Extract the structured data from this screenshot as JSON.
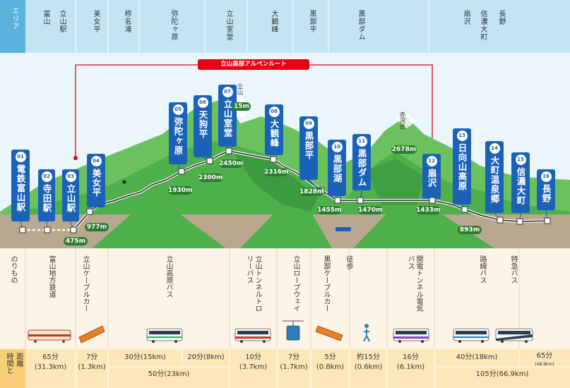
{
  "header_row": {
    "label": "エリア",
    "areas": [
      "富山",
      "立山駅",
      "美女平",
      "称名滝",
      "弥陀ヶ原",
      "立山室堂",
      "大観峰",
      "黒部平",
      "黒部ダム",
      "扇沢",
      "信濃大町",
      "長野"
    ]
  },
  "route_banner": "立山黒部アルペンルート",
  "peaks": {
    "tateyama": "立山",
    "akazawadake": "赤沢岳",
    "akazawadake_elev": "2678m"
  },
  "stations": [
    {
      "num": "01",
      "name": "電鉄富山駅",
      "elev": ""
    },
    {
      "num": "02",
      "name": "寺田駅",
      "elev": ""
    },
    {
      "num": "03",
      "name": "立山駅",
      "elev": "475m"
    },
    {
      "num": "04",
      "name": "美女平",
      "elev": "977m"
    },
    {
      "num": "05",
      "name": "弥陀ヶ原",
      "elev": "1930m"
    },
    {
      "num": "06",
      "name": "天狗平",
      "elev": "2300m"
    },
    {
      "num": "07",
      "name": "立山室堂",
      "elev": "2450m"
    },
    {
      "num": "08",
      "name": "大観峰",
      "elev": "2316m"
    },
    {
      "num": "09",
      "name": "黒部平",
      "elev": "1828m"
    },
    {
      "num": "10",
      "name": "黒部湖",
      "elev": "1455m"
    },
    {
      "num": "11",
      "name": "黒部ダム",
      "elev": "1470m"
    },
    {
      "num": "12",
      "name": "扇沢",
      "elev": "1433m"
    },
    {
      "num": "13",
      "name": "日向山高原",
      "elev": "893m"
    },
    {
      "num": "14",
      "name": "大町温泉郷",
      "elev": ""
    },
    {
      "num": "15",
      "name": "信濃大町",
      "elev": ""
    },
    {
      "num": "16",
      "name": "長野",
      "elev": ""
    }
  ],
  "tateyama_elev_partial": "15m",
  "transport": {
    "label": "のりもの",
    "modes": [
      "富山地方鉄道",
      "立山ケーブルカー",
      "立山高原バス",
      "立山トンネルトロリーバス",
      "立山ロープウェイ",
      "黒部ケーブルカー",
      "徒歩",
      "関電トンネル電気バス",
      "路線バス",
      "特急バス"
    ]
  },
  "time_row": {
    "label_a": "距離",
    "label_b": "時間と",
    "segments": [
      {
        "time": "65分",
        "dist": "(31.3km)"
      },
      {
        "time": "7分",
        "dist": "(1.3km)"
      },
      {
        "time": "30分(15km)",
        "dist": ""
      },
      {
        "time": "20分(8km)",
        "dist": ""
      },
      {
        "time": "50分(23km)",
        "dist": ""
      },
      {
        "time": "10分",
        "dist": "(3.7km)"
      },
      {
        "time": "7分",
        "dist": "(1.7km)"
      },
      {
        "time": "5分",
        "dist": "(0.8km)"
      },
      {
        "time": "約15分",
        "dist": "(0.6km)"
      },
      {
        "time": "16分",
        "dist": "(6.1km)"
      },
      {
        "time": "40分(18km)",
        "dist": ""
      },
      {
        "time": "65分",
        "dist": "(48.9km)"
      },
      {
        "time": "105分(66.9km)",
        "dist": ""
      }
    ]
  },
  "colors": {
    "sky": "#eaf6fb",
    "header": "#c3e4f3",
    "header_left": "#5ab2dd",
    "mountain": "#4eb04a",
    "mountain_dark": "#2e8b3a",
    "ground": "#b8a88f",
    "station_blue": "#1a62b8",
    "elev_green": "#2a7d2e",
    "route_red": "#e60012",
    "mode_bg": "#fdf4e7",
    "time_bg": "#fde7b8"
  }
}
